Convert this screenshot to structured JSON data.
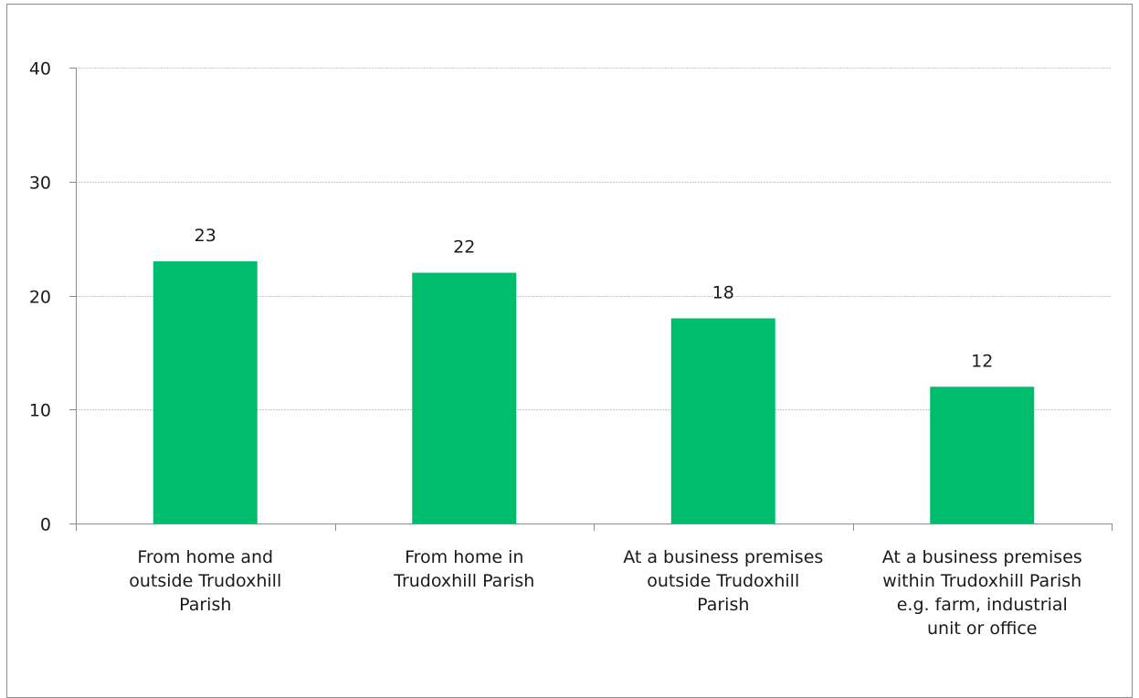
{
  "chart_data": {
    "type": "bar",
    "categories": [
      [
        "From home and",
        "outside Trudoxhill",
        "Parish"
      ],
      [
        "From home in",
        "Trudoxhill Parish"
      ],
      [
        "At a business premises",
        "outside Trudoxhill",
        "Parish"
      ],
      [
        "At a business premises",
        "within Trudoxhill Parish",
        "e.g. farm, industrial",
        "unit or office"
      ]
    ],
    "values": [
      23,
      22,
      18,
      12
    ],
    "data_labels": [
      "23",
      "22",
      "18",
      "12"
    ],
    "ylim": [
      0,
      40
    ],
    "yticks": [
      0,
      10,
      20,
      30,
      40
    ],
    "ytick_labels": [
      "0",
      "10",
      "20",
      "30",
      "40"
    ],
    "grid": true,
    "title": "",
    "xlabel": "",
    "ylabel": "",
    "colors": {
      "bar": "#00BD6E",
      "grid": "#c8c8c8",
      "axis": "#8c8c8c"
    }
  }
}
